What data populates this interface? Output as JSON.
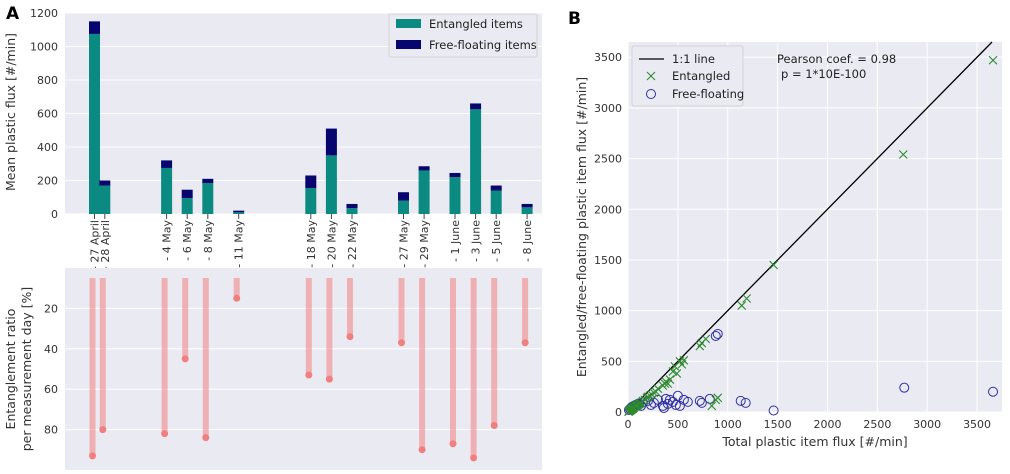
{
  "figure": {
    "panel_a_letter": "A",
    "panel_b_letter": "B"
  },
  "chart_data": [
    {
      "type": "bar",
      "stacked": true,
      "title": "",
      "xlabel": "",
      "ylabel": "Mean plastic flux [#/min]",
      "ylim": [
        0,
        1200
      ],
      "yticks": [
        0,
        200,
        400,
        600,
        800,
        1000,
        1200
      ],
      "grid": true,
      "legend_position": "top-right",
      "categories": [
        "27 April",
        "28 April",
        "4 May",
        "6 May",
        "8 May",
        "11 May",
        "18 May",
        "20 May",
        "22 May",
        "27 May",
        "29 May",
        "1 June",
        "3 June",
        "5 June",
        "8 June"
      ],
      "category_day_index": [
        0,
        1,
        7,
        9,
        11,
        14,
        21,
        23,
        25,
        30,
        32,
        35,
        37,
        39,
        42
      ],
      "series": [
        {
          "name": "Entangled items",
          "color": "#0a8a80",
          "values": [
            1075,
            170,
            275,
            95,
            185,
            10,
            155,
            350,
            35,
            80,
            260,
            220,
            625,
            140,
            40
          ]
        },
        {
          "name": "Free-floating items",
          "color": "#06066e",
          "values": [
            75,
            30,
            45,
            50,
            25,
            10,
            75,
            160,
            25,
            50,
            25,
            25,
            35,
            30,
            20
          ]
        }
      ]
    },
    {
      "type": "lollipop",
      "title": "",
      "xlabel": "",
      "ylabel": "Entanglement ratio",
      "ylabel2": "per measurement day [%]",
      "ylim": [
        100,
        0
      ],
      "yticks": [
        20,
        40,
        60,
        80
      ],
      "inverted_y": true,
      "color": "#f08080",
      "categories": [
        "27 April",
        "28 April",
        "4 May",
        "6 May",
        "8 May",
        "11 May",
        "18 May",
        "20 May",
        "22 May",
        "27 May",
        "29 May",
        "1 June",
        "3 June",
        "5 June",
        "8 June"
      ],
      "values": [
        93,
        80,
        82,
        45,
        84,
        15,
        53,
        55,
        34,
        37,
        90,
        87,
        94,
        78,
        37
      ]
    },
    {
      "type": "scatter",
      "title": "",
      "xlabel": "Total plastic item flux [#/min]",
      "ylabel": "Entangled/free-floating plastic item flux [#/min]",
      "xlim": [
        0,
        3750
      ],
      "ylim": [
        0,
        3650
      ],
      "xticks": [
        0,
        500,
        1000,
        1500,
        2000,
        2500,
        3000,
        3500
      ],
      "yticks": [
        0,
        500,
        1000,
        1500,
        2000,
        2500,
        3000,
        3500
      ],
      "grid": true,
      "legend_position": "top-left",
      "annotation_line1": "Pearson coef. = 0.98",
      "annotation_line2": "p = 1*10E-100",
      "line": {
        "name": "1:1 line",
        "x": [
          0,
          3650
        ],
        "y": [
          0,
          3650
        ],
        "color": "#000000"
      },
      "series": [
        {
          "name": "Entangled",
          "marker": "x",
          "color": "#2e8b2e",
          "x": [
            5,
            10,
            15,
            20,
            25,
            30,
            35,
            40,
            45,
            50,
            55,
            60,
            70,
            80,
            90,
            100,
            110,
            120,
            130,
            150,
            170,
            190,
            200,
            220,
            240,
            260,
            280,
            300,
            350,
            370,
            380,
            400,
            420,
            450,
            470,
            490,
            520,
            540,
            560,
            720,
            740,
            780,
            840,
            880,
            900,
            1140,
            1190,
            1460,
            2760,
            3660
          ],
          "y": [
            3,
            8,
            10,
            15,
            18,
            22,
            25,
            30,
            32,
            35,
            40,
            45,
            55,
            60,
            65,
            70,
            80,
            85,
            90,
            110,
            120,
            140,
            150,
            160,
            170,
            190,
            200,
            230,
            260,
            280,
            300,
            280,
            320,
            400,
            450,
            380,
            500,
            470,
            510,
            650,
            680,
            720,
            60,
            120,
            140,
            1050,
            1120,
            1450,
            2540,
            3470
          ]
        },
        {
          "name": "Free-floating",
          "marker": "o",
          "color": "#3030a0",
          "x": [
            10,
            20,
            30,
            40,
            50,
            60,
            70,
            80,
            90,
            100,
            110,
            130,
            150,
            200,
            230,
            260,
            300,
            350,
            360,
            380,
            400,
            420,
            450,
            480,
            500,
            520,
            560,
            600,
            720,
            740,
            820,
            880,
            900,
            1130,
            1180,
            1460,
            2770,
            3660
          ],
          "y": [
            20,
            30,
            40,
            50,
            55,
            60,
            65,
            70,
            75,
            80,
            85,
            60,
            95,
            110,
            70,
            90,
            120,
            60,
            40,
            130,
            80,
            120,
            100,
            70,
            160,
            60,
            120,
            100,
            110,
            90,
            130,
            750,
            770,
            110,
            90,
            15,
            240,
            200
          ]
        }
      ]
    }
  ]
}
